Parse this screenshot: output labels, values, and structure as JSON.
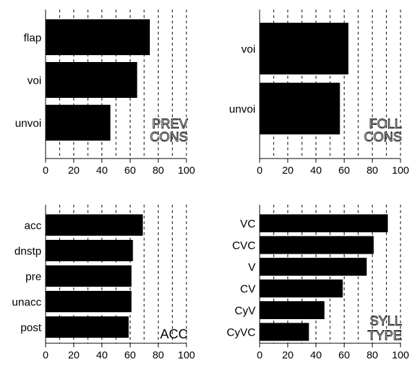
{
  "chart_data": [
    {
      "type": "bar",
      "orientation": "horizontal",
      "corner_label": [
        "PREV",
        "CONS"
      ],
      "label_style": "outline",
      "categories": [
        "flap",
        "voi",
        "unvoi"
      ],
      "values": [
        74,
        65,
        46
      ],
      "xlim": [
        0,
        100
      ],
      "xticks": [
        0,
        20,
        40,
        60,
        80,
        100
      ],
      "grid": "dashed vertical every 10"
    },
    {
      "type": "bar",
      "orientation": "horizontal",
      "corner_label": [
        "FOLL",
        "CONS"
      ],
      "label_style": "outline",
      "categories": [
        "voi",
        "unvoi"
      ],
      "values": [
        63,
        57
      ],
      "xlim": [
        0,
        100
      ],
      "xticks": [
        0,
        20,
        40,
        60,
        80,
        100
      ],
      "grid": "dashed vertical every 10"
    },
    {
      "type": "bar",
      "orientation": "horizontal",
      "corner_label": [
        "ACC"
      ],
      "label_style": "plain",
      "categories": [
        "acc",
        "dnstp",
        "pre",
        "unacc",
        "post"
      ],
      "values": [
        69,
        62,
        61,
        61,
        59
      ],
      "xlim": [
        0,
        100
      ],
      "xticks": [
        0,
        20,
        40,
        60,
        80,
        100
      ],
      "grid": "dashed vertical every 10"
    },
    {
      "type": "bar",
      "orientation": "horizontal",
      "corner_label": [
        "SYLL",
        "TYPE"
      ],
      "label_style": "outline",
      "categories": [
        "VC",
        "CVC",
        "V",
        "CV",
        "CyV",
        "CyVC"
      ],
      "values": [
        91,
        81,
        76,
        59,
        46,
        35
      ],
      "xlim": [
        0,
        100
      ],
      "xticks": [
        0,
        20,
        40,
        60,
        80,
        100
      ],
      "grid": "dashed vertical every 10"
    }
  ],
  "colors": {
    "bar": "#000000",
    "grid": "#000000",
    "background": "#ffffff"
  }
}
